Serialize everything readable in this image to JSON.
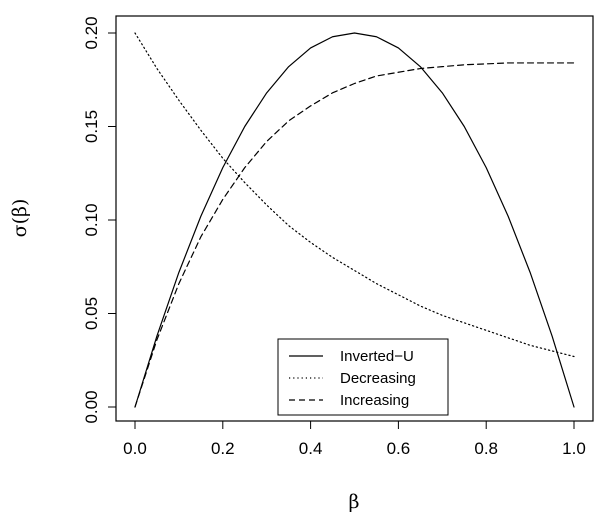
{
  "chart_data": {
    "type": "line",
    "title": "",
    "xlabel": "β",
    "ylabel": "σ(β)",
    "xlim": [
      0.0,
      1.0
    ],
    "ylim": [
      0.0,
      0.2
    ],
    "xticks": [
      0.0,
      0.2,
      0.4,
      0.6,
      0.8,
      1.0
    ],
    "xtick_labels": [
      "0.0",
      "0.2",
      "0.4",
      "0.6",
      "0.8",
      "1.0"
    ],
    "yticks": [
      0.0,
      0.05,
      0.1,
      0.15,
      0.2
    ],
    "ytick_labels": [
      "0.00",
      "0.05",
      "0.10",
      "0.15",
      "0.20"
    ],
    "grid": false,
    "legend_position": "bottom-center",
    "x": [
      0.0,
      0.05,
      0.1,
      0.15,
      0.2,
      0.25,
      0.3,
      0.35,
      0.4,
      0.45,
      0.5,
      0.55,
      0.6,
      0.65,
      0.7,
      0.75,
      0.8,
      0.85,
      0.9,
      0.95,
      1.0
    ],
    "series": [
      {
        "name": "Inverted−U",
        "line_style": "solid",
        "values": [
          0.0,
          0.038,
          0.072,
          0.102,
          0.128,
          0.15,
          0.168,
          0.182,
          0.192,
          0.198,
          0.2,
          0.198,
          0.192,
          0.182,
          0.168,
          0.15,
          0.128,
          0.102,
          0.072,
          0.038,
          0.0
        ]
      },
      {
        "name": "Decreasing",
        "line_style": "dotted",
        "values": [
          0.2,
          0.181,
          0.164,
          0.148,
          0.133,
          0.12,
          0.108,
          0.097,
          0.088,
          0.08,
          0.073,
          0.066,
          0.06,
          0.054,
          0.049,
          0.045,
          0.041,
          0.037,
          0.033,
          0.03,
          0.027
        ]
      },
      {
        "name": "Increasing",
        "line_style": "dashed",
        "values": [
          0.0,
          0.036,
          0.066,
          0.091,
          0.111,
          0.128,
          0.142,
          0.153,
          0.161,
          0.168,
          0.173,
          0.177,
          0.179,
          0.181,
          0.182,
          0.183,
          0.1835,
          0.184,
          0.184,
          0.184,
          0.184
        ]
      }
    ]
  }
}
